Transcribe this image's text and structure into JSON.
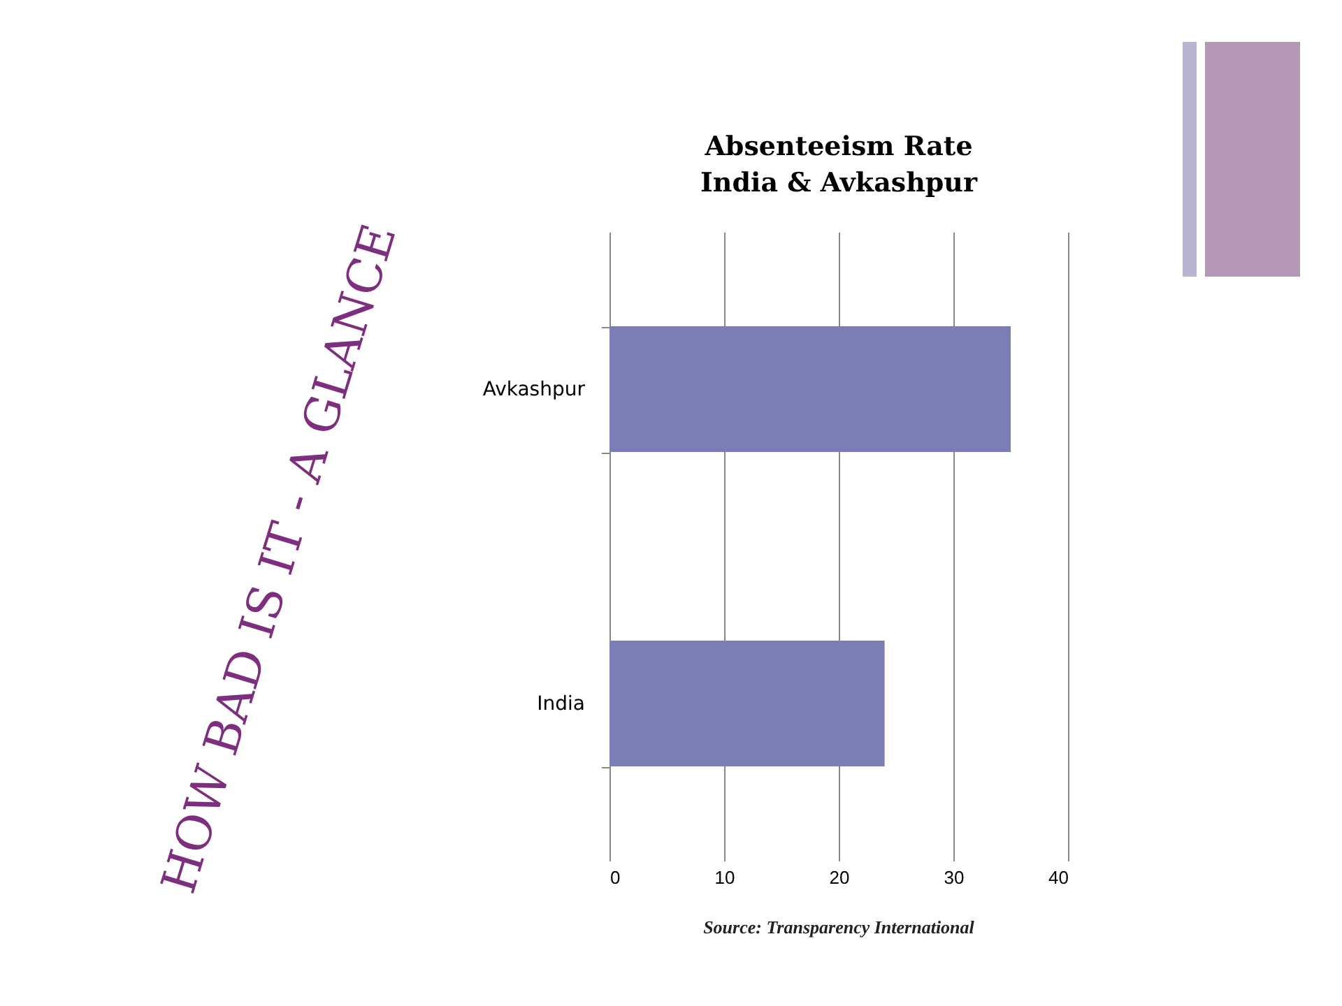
{
  "chart_data": {
    "type": "bar",
    "orientation": "horizontal",
    "title": "Absenteeism Rate\nIndia & Avkashpur",
    "categories": [
      "Avkashpur",
      "India"
    ],
    "values": [
      35,
      24
    ],
    "color": "#7b7db5",
    "xlim": [
      0,
      40
    ],
    "xticks": [
      0,
      10,
      20,
      30,
      40
    ],
    "grid": "x",
    "annotations": [
      "Source: Transparency International",
      "HOW BAD IS IT  - A GLANCE"
    ]
  }
}
